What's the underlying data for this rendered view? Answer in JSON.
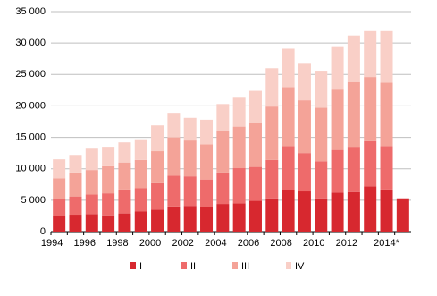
{
  "chart_data": {
    "type": "stacked-bar",
    "categories": [
      "1994",
      null,
      "1996",
      null,
      "1998",
      null,
      "2000",
      null,
      "2002",
      null,
      "2004",
      null,
      "2006",
      null,
      "2008",
      null,
      "2010",
      null,
      "2012",
      null,
      "2014*",
      null
    ],
    "series": [
      {
        "name": "I",
        "color": "#d7282f",
        "values": [
          2500,
          2700,
          2800,
          2600,
          2900,
          3200,
          3500,
          4000,
          4100,
          3900,
          4400,
          4500,
          4900,
          5300,
          6600,
          6400,
          5300,
          6200,
          6300,
          7200,
          6700,
          5300
        ]
      },
      {
        "name": "II",
        "color": "#ee6b6b",
        "values": [
          2700,
          2900,
          3100,
          3500,
          3800,
          3700,
          4200,
          4900,
          4700,
          4400,
          5000,
          5600,
          5400,
          6100,
          7000,
          6100,
          5900,
          6800,
          7200,
          7200,
          6900,
          null
        ]
      },
      {
        "name": "III",
        "color": "#f4a398",
        "values": [
          3300,
          3800,
          3900,
          4300,
          4300,
          4500,
          5100,
          6100,
          5700,
          5600,
          6600,
          6600,
          7000,
          8500,
          9400,
          8400,
          8500,
          9600,
          10300,
          10200,
          10100,
          null
        ]
      },
      {
        "name": "IV",
        "color": "#f9cfc7",
        "values": [
          3000,
          2800,
          3400,
          3100,
          3200,
          3300,
          4100,
          3900,
          3600,
          3900,
          4300,
          4600,
          5100,
          6100,
          6100,
          5800,
          5900,
          6900,
          7400,
          7300,
          8200,
          null
        ]
      }
    ],
    "ylim": [
      0,
      35000
    ],
    "yticks": [
      0,
      {
        "value": 5000,
        "label": "5 000"
      },
      {
        "value": 10000,
        "label": "10 000"
      },
      {
        "value": 15000,
        "label": "15 000"
      },
      {
        "value": 20000,
        "label": "20 000"
      },
      {
        "value": 25000,
        "label": "25 000"
      },
      {
        "value": 30000,
        "label": "30 000"
      },
      {
        "value": 35000,
        "label": "35 000"
      }
    ],
    "grid": true,
    "legend": "bottom"
  }
}
